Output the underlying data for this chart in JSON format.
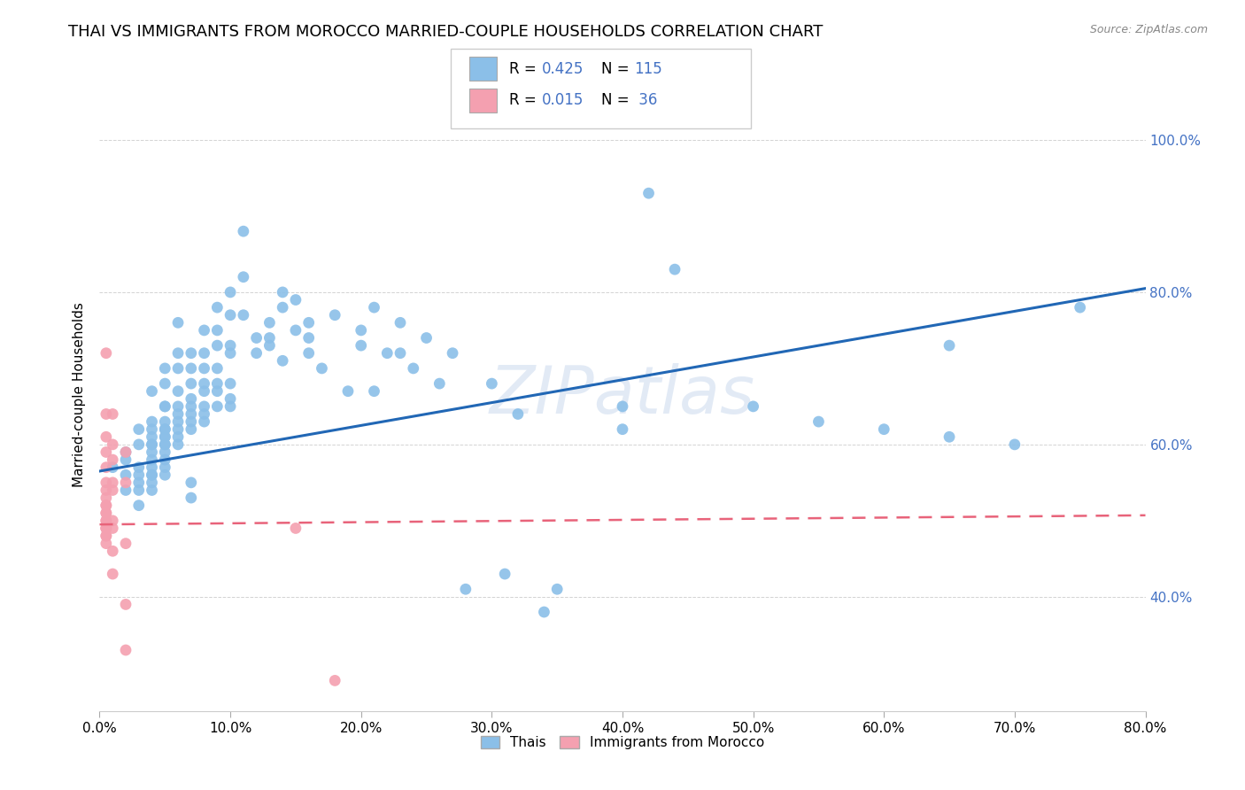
{
  "title": "THAI VS IMMIGRANTS FROM MOROCCO MARRIED-COUPLE HOUSEHOLDS CORRELATION CHART",
  "source": "Source: ZipAtlas.com",
  "xlabel_ticks": [
    "0.0%",
    "",
    "",
    "",
    "",
    "",
    "",
    "",
    "",
    "10.0%",
    "",
    "",
    "",
    "",
    "",
    "",
    "",
    "",
    "",
    "20.0%",
    "",
    "",
    "",
    "",
    "",
    "",
    "",
    "",
    "",
    "30.0%",
    "",
    "",
    "",
    "",
    "",
    "",
    "",
    "",
    "",
    "40.0%",
    "",
    "",
    "",
    "",
    "",
    "",
    "",
    "",
    "",
    "50.0%",
    "",
    "",
    "",
    "",
    "",
    "",
    "",
    "",
    "",
    "60.0%",
    "",
    "",
    "",
    "",
    "",
    "",
    "",
    "",
    "",
    "70.0%",
    "",
    "",
    "",
    "",
    "",
    "",
    "",
    "",
    "",
    "80.0%"
  ],
  "xlabel_tick_vals": [
    0.0,
    0.1,
    0.2,
    0.3,
    0.4,
    0.5,
    0.6,
    0.7,
    0.8
  ],
  "xlabel_tick_show": [
    "0.0%",
    "10.0%",
    "20.0%",
    "30.0%",
    "40.0%",
    "50.0%",
    "60.0%",
    "70.0%",
    "80.0%"
  ],
  "ylabel_ticks_right": [
    "40.0%",
    "60.0%",
    "80.0%",
    "100.0%"
  ],
  "ylabel_tick_vals": [
    0.4,
    0.6,
    0.8,
    1.0
  ],
  "ylabel_label": "Married-couple Households",
  "xlim": [
    0.0,
    0.8
  ],
  "ylim": [
    0.25,
    1.08
  ],
  "watermark": "ZIPatlas",
  "blue_color": "#8BBFE8",
  "pink_color": "#F4A0B0",
  "blue_line_color": "#2167B5",
  "pink_line_color": "#E8637A",
  "title_fontsize": 13,
  "axis_label_fontsize": 11,
  "tick_fontsize": 11,
  "tick_color_right": "#4472C4",
  "blue_scatter": [
    [
      0.01,
      0.57
    ],
    [
      0.02,
      0.54
    ],
    [
      0.02,
      0.58
    ],
    [
      0.02,
      0.59
    ],
    [
      0.02,
      0.56
    ],
    [
      0.03,
      0.62
    ],
    [
      0.03,
      0.6
    ],
    [
      0.03,
      0.57
    ],
    [
      0.03,
      0.56
    ],
    [
      0.03,
      0.55
    ],
    [
      0.03,
      0.54
    ],
    [
      0.03,
      0.52
    ],
    [
      0.04,
      0.67
    ],
    [
      0.04,
      0.63
    ],
    [
      0.04,
      0.62
    ],
    [
      0.04,
      0.61
    ],
    [
      0.04,
      0.6
    ],
    [
      0.04,
      0.6
    ],
    [
      0.04,
      0.59
    ],
    [
      0.04,
      0.58
    ],
    [
      0.04,
      0.57
    ],
    [
      0.04,
      0.56
    ],
    [
      0.04,
      0.56
    ],
    [
      0.04,
      0.55
    ],
    [
      0.04,
      0.54
    ],
    [
      0.05,
      0.7
    ],
    [
      0.05,
      0.68
    ],
    [
      0.05,
      0.65
    ],
    [
      0.05,
      0.65
    ],
    [
      0.05,
      0.63
    ],
    [
      0.05,
      0.62
    ],
    [
      0.05,
      0.62
    ],
    [
      0.05,
      0.61
    ],
    [
      0.05,
      0.61
    ],
    [
      0.05,
      0.6
    ],
    [
      0.05,
      0.6
    ],
    [
      0.05,
      0.59
    ],
    [
      0.05,
      0.58
    ],
    [
      0.05,
      0.57
    ],
    [
      0.05,
      0.56
    ],
    [
      0.06,
      0.76
    ],
    [
      0.06,
      0.72
    ],
    [
      0.06,
      0.7
    ],
    [
      0.06,
      0.67
    ],
    [
      0.06,
      0.65
    ],
    [
      0.06,
      0.64
    ],
    [
      0.06,
      0.63
    ],
    [
      0.06,
      0.62
    ],
    [
      0.06,
      0.61
    ],
    [
      0.06,
      0.6
    ],
    [
      0.07,
      0.72
    ],
    [
      0.07,
      0.7
    ],
    [
      0.07,
      0.68
    ],
    [
      0.07,
      0.66
    ],
    [
      0.07,
      0.65
    ],
    [
      0.07,
      0.64
    ],
    [
      0.07,
      0.63
    ],
    [
      0.07,
      0.62
    ],
    [
      0.07,
      0.55
    ],
    [
      0.07,
      0.53
    ],
    [
      0.08,
      0.75
    ],
    [
      0.08,
      0.72
    ],
    [
      0.08,
      0.7
    ],
    [
      0.08,
      0.68
    ],
    [
      0.08,
      0.67
    ],
    [
      0.08,
      0.65
    ],
    [
      0.08,
      0.64
    ],
    [
      0.08,
      0.63
    ],
    [
      0.09,
      0.78
    ],
    [
      0.09,
      0.75
    ],
    [
      0.09,
      0.73
    ],
    [
      0.09,
      0.7
    ],
    [
      0.09,
      0.68
    ],
    [
      0.09,
      0.67
    ],
    [
      0.09,
      0.65
    ],
    [
      0.1,
      0.8
    ],
    [
      0.1,
      0.77
    ],
    [
      0.1,
      0.73
    ],
    [
      0.1,
      0.72
    ],
    [
      0.1,
      0.68
    ],
    [
      0.1,
      0.66
    ],
    [
      0.1,
      0.65
    ],
    [
      0.11,
      0.88
    ],
    [
      0.11,
      0.82
    ],
    [
      0.11,
      0.77
    ],
    [
      0.12,
      0.74
    ],
    [
      0.12,
      0.72
    ],
    [
      0.13,
      0.76
    ],
    [
      0.13,
      0.74
    ],
    [
      0.13,
      0.73
    ],
    [
      0.14,
      0.8
    ],
    [
      0.14,
      0.78
    ],
    [
      0.14,
      0.71
    ],
    [
      0.15,
      0.79
    ],
    [
      0.15,
      0.75
    ],
    [
      0.16,
      0.76
    ],
    [
      0.16,
      0.74
    ],
    [
      0.16,
      0.72
    ],
    [
      0.17,
      0.7
    ],
    [
      0.18,
      0.77
    ],
    [
      0.19,
      0.67
    ],
    [
      0.2,
      0.75
    ],
    [
      0.2,
      0.73
    ],
    [
      0.21,
      0.78
    ],
    [
      0.21,
      0.67
    ],
    [
      0.22,
      0.72
    ],
    [
      0.23,
      0.76
    ],
    [
      0.23,
      0.72
    ],
    [
      0.24,
      0.7
    ],
    [
      0.25,
      0.74
    ],
    [
      0.26,
      0.68
    ],
    [
      0.27,
      0.72
    ],
    [
      0.28,
      0.41
    ],
    [
      0.3,
      0.68
    ],
    [
      0.31,
      0.43
    ],
    [
      0.32,
      0.64
    ],
    [
      0.34,
      0.38
    ],
    [
      0.35,
      0.41
    ],
    [
      0.4,
      0.65
    ],
    [
      0.4,
      0.62
    ],
    [
      0.42,
      0.93
    ],
    [
      0.44,
      0.83
    ],
    [
      0.5,
      0.65
    ],
    [
      0.55,
      0.63
    ],
    [
      0.6,
      0.62
    ],
    [
      0.65,
      0.61
    ],
    [
      0.65,
      0.73
    ],
    [
      0.7,
      0.6
    ],
    [
      0.75,
      0.78
    ]
  ],
  "pink_scatter": [
    [
      0.005,
      0.72
    ],
    [
      0.005,
      0.64
    ],
    [
      0.005,
      0.61
    ],
    [
      0.005,
      0.59
    ],
    [
      0.005,
      0.57
    ],
    [
      0.005,
      0.55
    ],
    [
      0.005,
      0.54
    ],
    [
      0.005,
      0.53
    ],
    [
      0.005,
      0.52
    ],
    [
      0.005,
      0.52
    ],
    [
      0.005,
      0.51
    ],
    [
      0.005,
      0.51
    ],
    [
      0.005,
      0.5
    ],
    [
      0.005,
      0.5
    ],
    [
      0.005,
      0.49
    ],
    [
      0.005,
      0.49
    ],
    [
      0.005,
      0.49
    ],
    [
      0.005,
      0.48
    ],
    [
      0.005,
      0.48
    ],
    [
      0.005,
      0.47
    ],
    [
      0.01,
      0.64
    ],
    [
      0.01,
      0.6
    ],
    [
      0.01,
      0.58
    ],
    [
      0.01,
      0.55
    ],
    [
      0.01,
      0.54
    ],
    [
      0.01,
      0.5
    ],
    [
      0.01,
      0.49
    ],
    [
      0.01,
      0.46
    ],
    [
      0.01,
      0.43
    ],
    [
      0.02,
      0.59
    ],
    [
      0.02,
      0.55
    ],
    [
      0.02,
      0.47
    ],
    [
      0.02,
      0.39
    ],
    [
      0.02,
      0.33
    ],
    [
      0.15,
      0.49
    ],
    [
      0.18,
      0.29
    ]
  ],
  "blue_trendline": [
    [
      0.0,
      0.565
    ],
    [
      0.8,
      0.805
    ]
  ],
  "pink_trendline": [
    [
      0.0,
      0.495
    ],
    [
      0.8,
      0.507
    ]
  ]
}
